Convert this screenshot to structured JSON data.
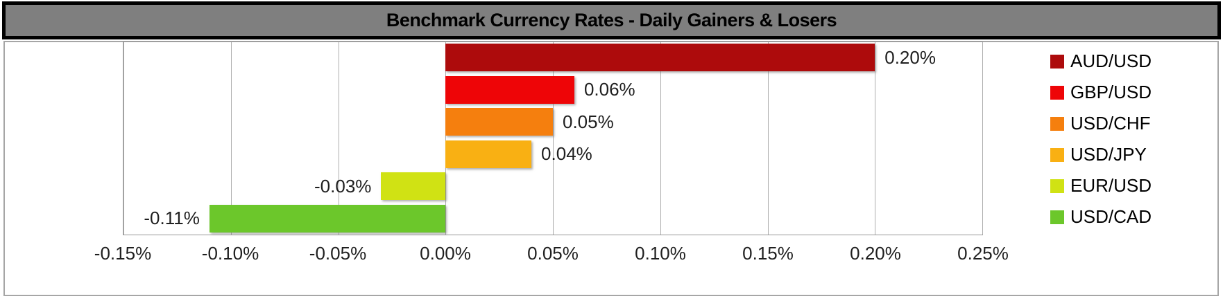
{
  "title_bar": {
    "text": "Benchmark Currency Rates - Daily Gainers & Losers"
  },
  "colors": {
    "title_bg": "#7F7F7F",
    "title_border": "#000000",
    "title_text": "#000000",
    "frame_border": "#A6A6A6",
    "plot_border": "#969696",
    "gridline": "#ADADAD",
    "label_text": "#1F1F1F",
    "chart_bg": "#FFFFFF"
  },
  "chart_data": {
    "type": "bar",
    "orientation": "horizontal",
    "title": "Benchmark Currency Rates - Daily Gainers & Losers",
    "categories": [
      "AUD/USD",
      "GBP/USD",
      "USD/CHF",
      "USD/JPY",
      "EUR/USD",
      "USD/CAD"
    ],
    "values": [
      0.2,
      0.06,
      0.05,
      0.04,
      -0.03,
      -0.11
    ],
    "series": [
      {
        "name": "AUD/USD",
        "value": 0.2,
        "label": "0.20%",
        "color": "#AD0B0C"
      },
      {
        "name": "GBP/USD",
        "value": 0.06,
        "label": "0.06%",
        "color": "#EE0507"
      },
      {
        "name": "USD/CHF",
        "value": 0.05,
        "label": "0.05%",
        "color": "#F57F0E"
      },
      {
        "name": "USD/JPY",
        "value": 0.04,
        "label": "0.04%",
        "color": "#F9B013"
      },
      {
        "name": "EUR/USD",
        "value": -0.03,
        "label": "-0.03%",
        "color": "#D0E214"
      },
      {
        "name": "USD/CAD",
        "value": -0.11,
        "label": "-0.11%",
        "color": "#6CC72B"
      }
    ],
    "xlabel": "",
    "ylabel": "",
    "xlim": [
      -0.15,
      0.25
    ],
    "x_ticks": [
      {
        "value": -0.15,
        "label": "-0.15%"
      },
      {
        "value": -0.1,
        "label": "-0.10%"
      },
      {
        "value": -0.05,
        "label": "-0.05%"
      },
      {
        "value": 0.0,
        "label": "0.00%"
      },
      {
        "value": 0.05,
        "label": "0.05%"
      },
      {
        "value": 0.1,
        "label": "0.10%"
      },
      {
        "value": 0.15,
        "label": "0.15%"
      },
      {
        "value": 0.2,
        "label": "0.20%"
      },
      {
        "value": 0.25,
        "label": "0.25%"
      }
    ],
    "grid": true,
    "legend_position": "right",
    "value_format": "percent"
  }
}
